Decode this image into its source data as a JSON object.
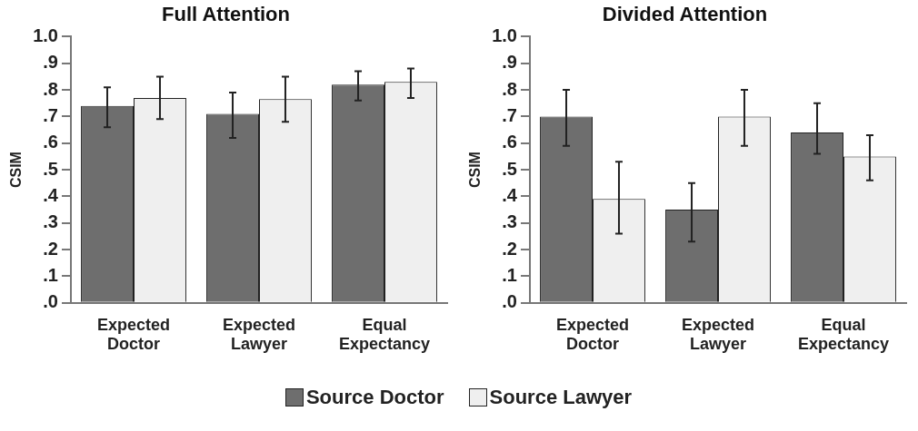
{
  "chart_data": [
    {
      "type": "bar",
      "title": "Full Attention",
      "ylabel": "CSIM",
      "categories": [
        "Expected Doctor",
        "Expected Lawyer",
        "Equal Expectancy"
      ],
      "series": [
        {
          "name": "Source Doctor",
          "color": "#6e6e6e",
          "values": [
            0.74,
            0.71,
            0.82
          ],
          "errors": [
            [
              0.66,
              0.81
            ],
            [
              0.62,
              0.79
            ],
            [
              0.76,
              0.87
            ]
          ]
        },
        {
          "name": "Source Lawyer",
          "color": "#efefef",
          "values": [
            0.77,
            0.765,
            0.83
          ],
          "errors": [
            [
              0.69,
              0.85
            ],
            [
              0.68,
              0.85
            ],
            [
              0.77,
              0.88
            ]
          ]
        }
      ],
      "ylim": [
        0,
        1
      ],
      "yticks": [
        {
          "value": 0,
          "label": ".0"
        },
        {
          "value": 0.1,
          "label": ".1"
        },
        {
          "value": 0.2,
          "label": ".2"
        },
        {
          "value": 0.3,
          "label": ".3"
        },
        {
          "value": 0.4,
          "label": ".4"
        },
        {
          "value": 0.5,
          "label": ".5"
        },
        {
          "value": 0.6,
          "label": ".6"
        },
        {
          "value": 0.7,
          "label": ".7"
        },
        {
          "value": 0.8,
          "label": ".8"
        },
        {
          "value": 0.9,
          "label": ".9"
        },
        {
          "value": 1,
          "label": "1.0"
        }
      ],
      "grid": false,
      "legend": "bottom"
    },
    {
      "type": "bar",
      "title": "Divided Attention",
      "ylabel": "CSIM",
      "categories": [
        "Expected Doctor",
        "Expected Lawyer",
        "Equal Expectancy"
      ],
      "series": [
        {
          "name": "Source Doctor",
          "color": "#6e6e6e",
          "values": [
            0.7,
            0.35,
            0.64
          ],
          "errors": [
            [
              0.59,
              0.8
            ],
            [
              0.23,
              0.45
            ],
            [
              0.56,
              0.75
            ]
          ]
        },
        {
          "name": "Source Lawyer",
          "color": "#efefef",
          "values": [
            0.39,
            0.7,
            0.55
          ],
          "errors": [
            [
              0.26,
              0.53
            ],
            [
              0.59,
              0.8
            ],
            [
              0.46,
              0.63
            ]
          ]
        }
      ],
      "ylim": [
        0,
        1
      ],
      "yticks": [
        {
          "value": 0,
          "label": ".0"
        },
        {
          "value": 0.1,
          "label": ".1"
        },
        {
          "value": 0.2,
          "label": ".2"
        },
        {
          "value": 0.3,
          "label": ".3"
        },
        {
          "value": 0.4,
          "label": ".4"
        },
        {
          "value": 0.5,
          "label": ".5"
        },
        {
          "value": 0.6,
          "label": ".6"
        },
        {
          "value": 0.7,
          "label": ".7"
        },
        {
          "value": 0.8,
          "label": ".8"
        },
        {
          "value": 0.9,
          "label": ".9"
        },
        {
          "value": 1,
          "label": "1.0"
        }
      ],
      "grid": false,
      "legend": "bottom"
    }
  ]
}
